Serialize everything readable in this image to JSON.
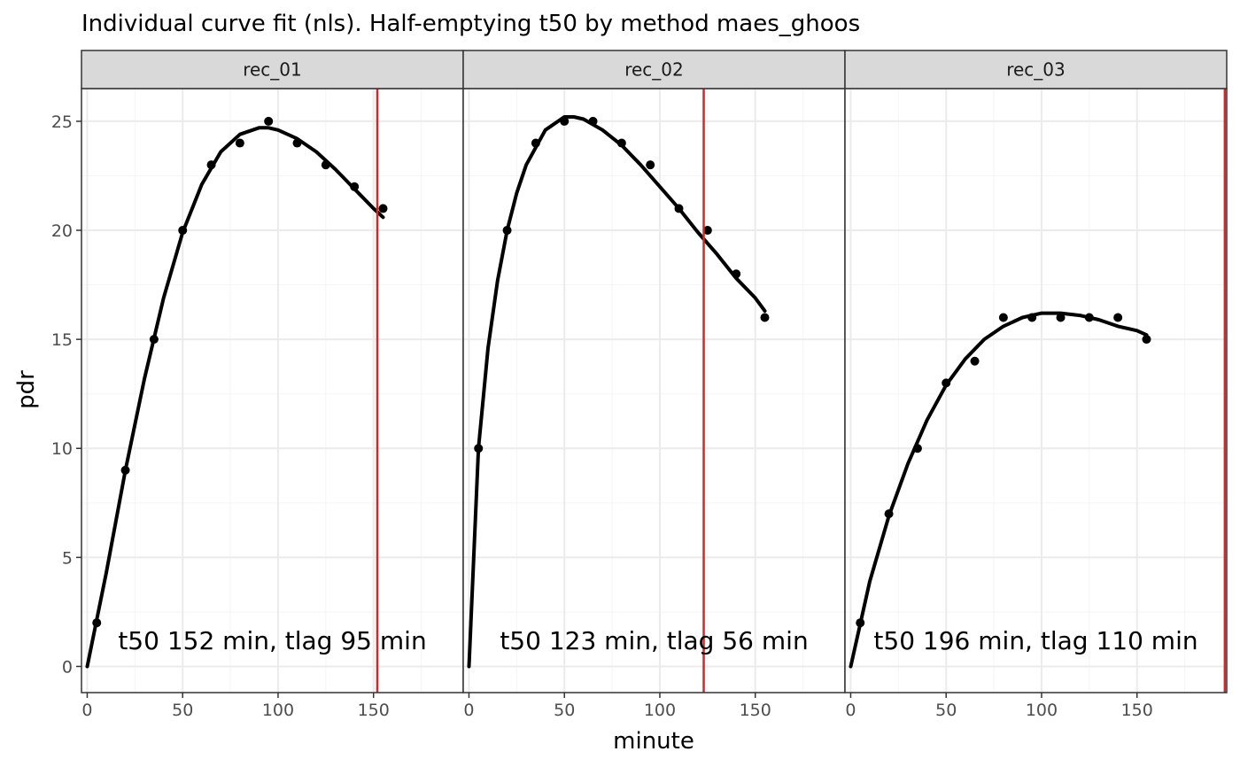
{
  "chart_data": {
    "type": "line",
    "title": "Individual curve fit (nls). Half-emptying t50 by method maes_ghoos",
    "xlabel": "minute",
    "ylabel": "pdr",
    "xlim": [
      -3,
      197
    ],
    "ylim": [
      -1.2,
      26.5
    ],
    "x_ticks": [
      0,
      50,
      100,
      150
    ],
    "y_ticks": [
      0,
      5,
      10,
      15,
      20,
      25
    ],
    "x_tick_labels": [
      "0",
      "50",
      "100",
      "150"
    ],
    "y_tick_labels": [
      "0",
      "5",
      "10",
      "15",
      "20",
      "25"
    ],
    "grid": true,
    "theme": "bw",
    "colors": {
      "points": "#000000",
      "fit": "#000000",
      "t50_line": "#d62728",
      "strip_bg": "#d9d9d9",
      "grid_major": "#ebebeb",
      "grid_minor": "#f5f5f5",
      "border": "#333333"
    },
    "panels": [
      {
        "strip": "rec_01",
        "annotation": "t50 152 min,  tlag 95 min",
        "t50": 152,
        "points": {
          "x": [
            5,
            20,
            35,
            50,
            65,
            80,
            95,
            110,
            125,
            140,
            155
          ],
          "y": [
            2,
            9,
            15,
            20,
            23,
            24,
            25,
            24,
            23,
            22,
            21
          ]
        },
        "fit": {
          "x": [
            0,
            10,
            20,
            30,
            40,
            50,
            60,
            70,
            80,
            90,
            95,
            100,
            110,
            120,
            130,
            140,
            150,
            155
          ],
          "y": [
            0,
            4.3,
            9.0,
            13.2,
            16.9,
            19.9,
            22.1,
            23.6,
            24.4,
            24.7,
            24.7,
            24.6,
            24.2,
            23.6,
            22.8,
            21.9,
            21.0,
            20.6
          ]
        }
      },
      {
        "strip": "rec_02",
        "annotation": "t50 123 min,  tlag 56 min",
        "t50": 123,
        "points": {
          "x": [
            5,
            20,
            35,
            50,
            65,
            80,
            95,
            110,
            125,
            140,
            155
          ],
          "y": [
            10,
            20,
            24,
            25,
            25,
            24,
            23,
            21,
            20,
            18,
            16
          ]
        },
        "fit": {
          "x": [
            0,
            5,
            10,
            15,
            20,
            25,
            30,
            40,
            50,
            55,
            60,
            70,
            80,
            90,
            100,
            110,
            120,
            130,
            140,
            150,
            155
          ],
          "y": [
            0,
            10.0,
            14.6,
            17.7,
            20.0,
            21.7,
            23.0,
            24.6,
            25.2,
            25.2,
            25.1,
            24.6,
            23.9,
            23.0,
            22.0,
            21.0,
            19.9,
            18.9,
            17.8,
            16.9,
            16.3
          ]
        }
      },
      {
        "strip": "rec_03",
        "annotation": "t50 196 min,  tlag 110 min",
        "t50": 196,
        "points": {
          "x": [
            5,
            20,
            35,
            50,
            65,
            80,
            95,
            110,
            125,
            140,
            155
          ],
          "y": [
            2,
            7,
            10,
            13,
            14,
            16,
            16,
            16,
            16,
            16,
            15
          ]
        },
        "fit": {
          "x": [
            0,
            10,
            20,
            30,
            40,
            50,
            60,
            70,
            80,
            90,
            100,
            110,
            120,
            130,
            140,
            150,
            155
          ],
          "y": [
            0,
            3.9,
            6.9,
            9.3,
            11.3,
            12.9,
            14.1,
            15.0,
            15.6,
            16.0,
            16.2,
            16.2,
            16.1,
            15.9,
            15.6,
            15.4,
            15.2
          ]
        }
      }
    ]
  }
}
